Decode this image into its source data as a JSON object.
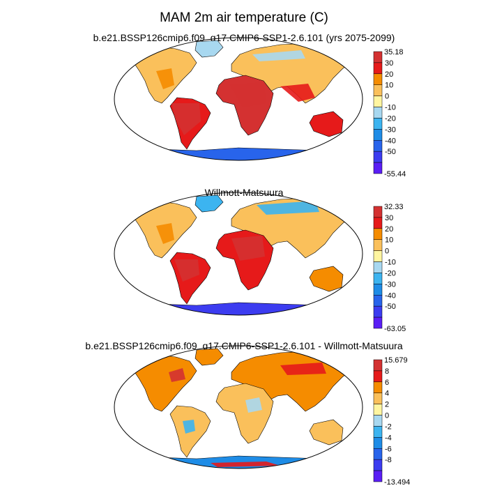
{
  "figure": {
    "title": "MAM 2m air temperature (C)"
  },
  "chart_data": [
    {
      "type": "heatmap",
      "title": "b.e21.BSSP126cmip6.f09_g17.CMIP6-SSP1-2.6.101 (yrs 2075-2099)",
      "variable": "2m air temperature",
      "units": "C",
      "projection": "Robinson",
      "colorbar": {
        "max_label": "35.18",
        "min_label": "-55.44",
        "ticks": [
          "30",
          "20",
          "10",
          "0",
          "-10",
          "-20",
          "-30",
          "-40",
          "-50"
        ],
        "colors": [
          "#d43131",
          "#e61a1a",
          "#f58c00",
          "#fac05b",
          "#fff5a0",
          "#a8d8f0",
          "#3cb4f0",
          "#1e8ce6",
          "#2864eb",
          "#3c3cf0",
          "#5a1ef5"
        ]
      }
    },
    {
      "type": "heatmap",
      "title": "Willmott-Matsuura",
      "variable": "2m air temperature",
      "units": "C",
      "projection": "Robinson",
      "colorbar": {
        "max_label": "32.33",
        "min_label": "-63.05",
        "ticks": [
          "30",
          "20",
          "10",
          "0",
          "-10",
          "-20",
          "-30",
          "-40",
          "-50"
        ],
        "colors": [
          "#d43131",
          "#e61a1a",
          "#f58c00",
          "#fac05b",
          "#fff5a0",
          "#a8d8f0",
          "#3cb4f0",
          "#1e8ce6",
          "#2864eb",
          "#3c3cf0",
          "#5a1ef5"
        ]
      }
    },
    {
      "type": "heatmap",
      "title": "b.e21.BSSP126cmip6.f09_g17.CMIP6-SSP1-2.6.101 - Willmott-Matsuura",
      "variable": "2m air temperature difference",
      "units": "C",
      "projection": "Robinson",
      "colorbar": {
        "max_label": "15.679",
        "min_label": "-13.494",
        "ticks": [
          "8",
          "6",
          "4",
          "2",
          "0",
          "-2",
          "-4",
          "-6",
          "-8"
        ],
        "colors": [
          "#d43131",
          "#e61a1a",
          "#f58c00",
          "#fac05b",
          "#fff5a0",
          "#a8d8f0",
          "#3cb4f0",
          "#1e8ce6",
          "#2864eb",
          "#3c3cf0",
          "#5a1ef5"
        ]
      }
    }
  ]
}
